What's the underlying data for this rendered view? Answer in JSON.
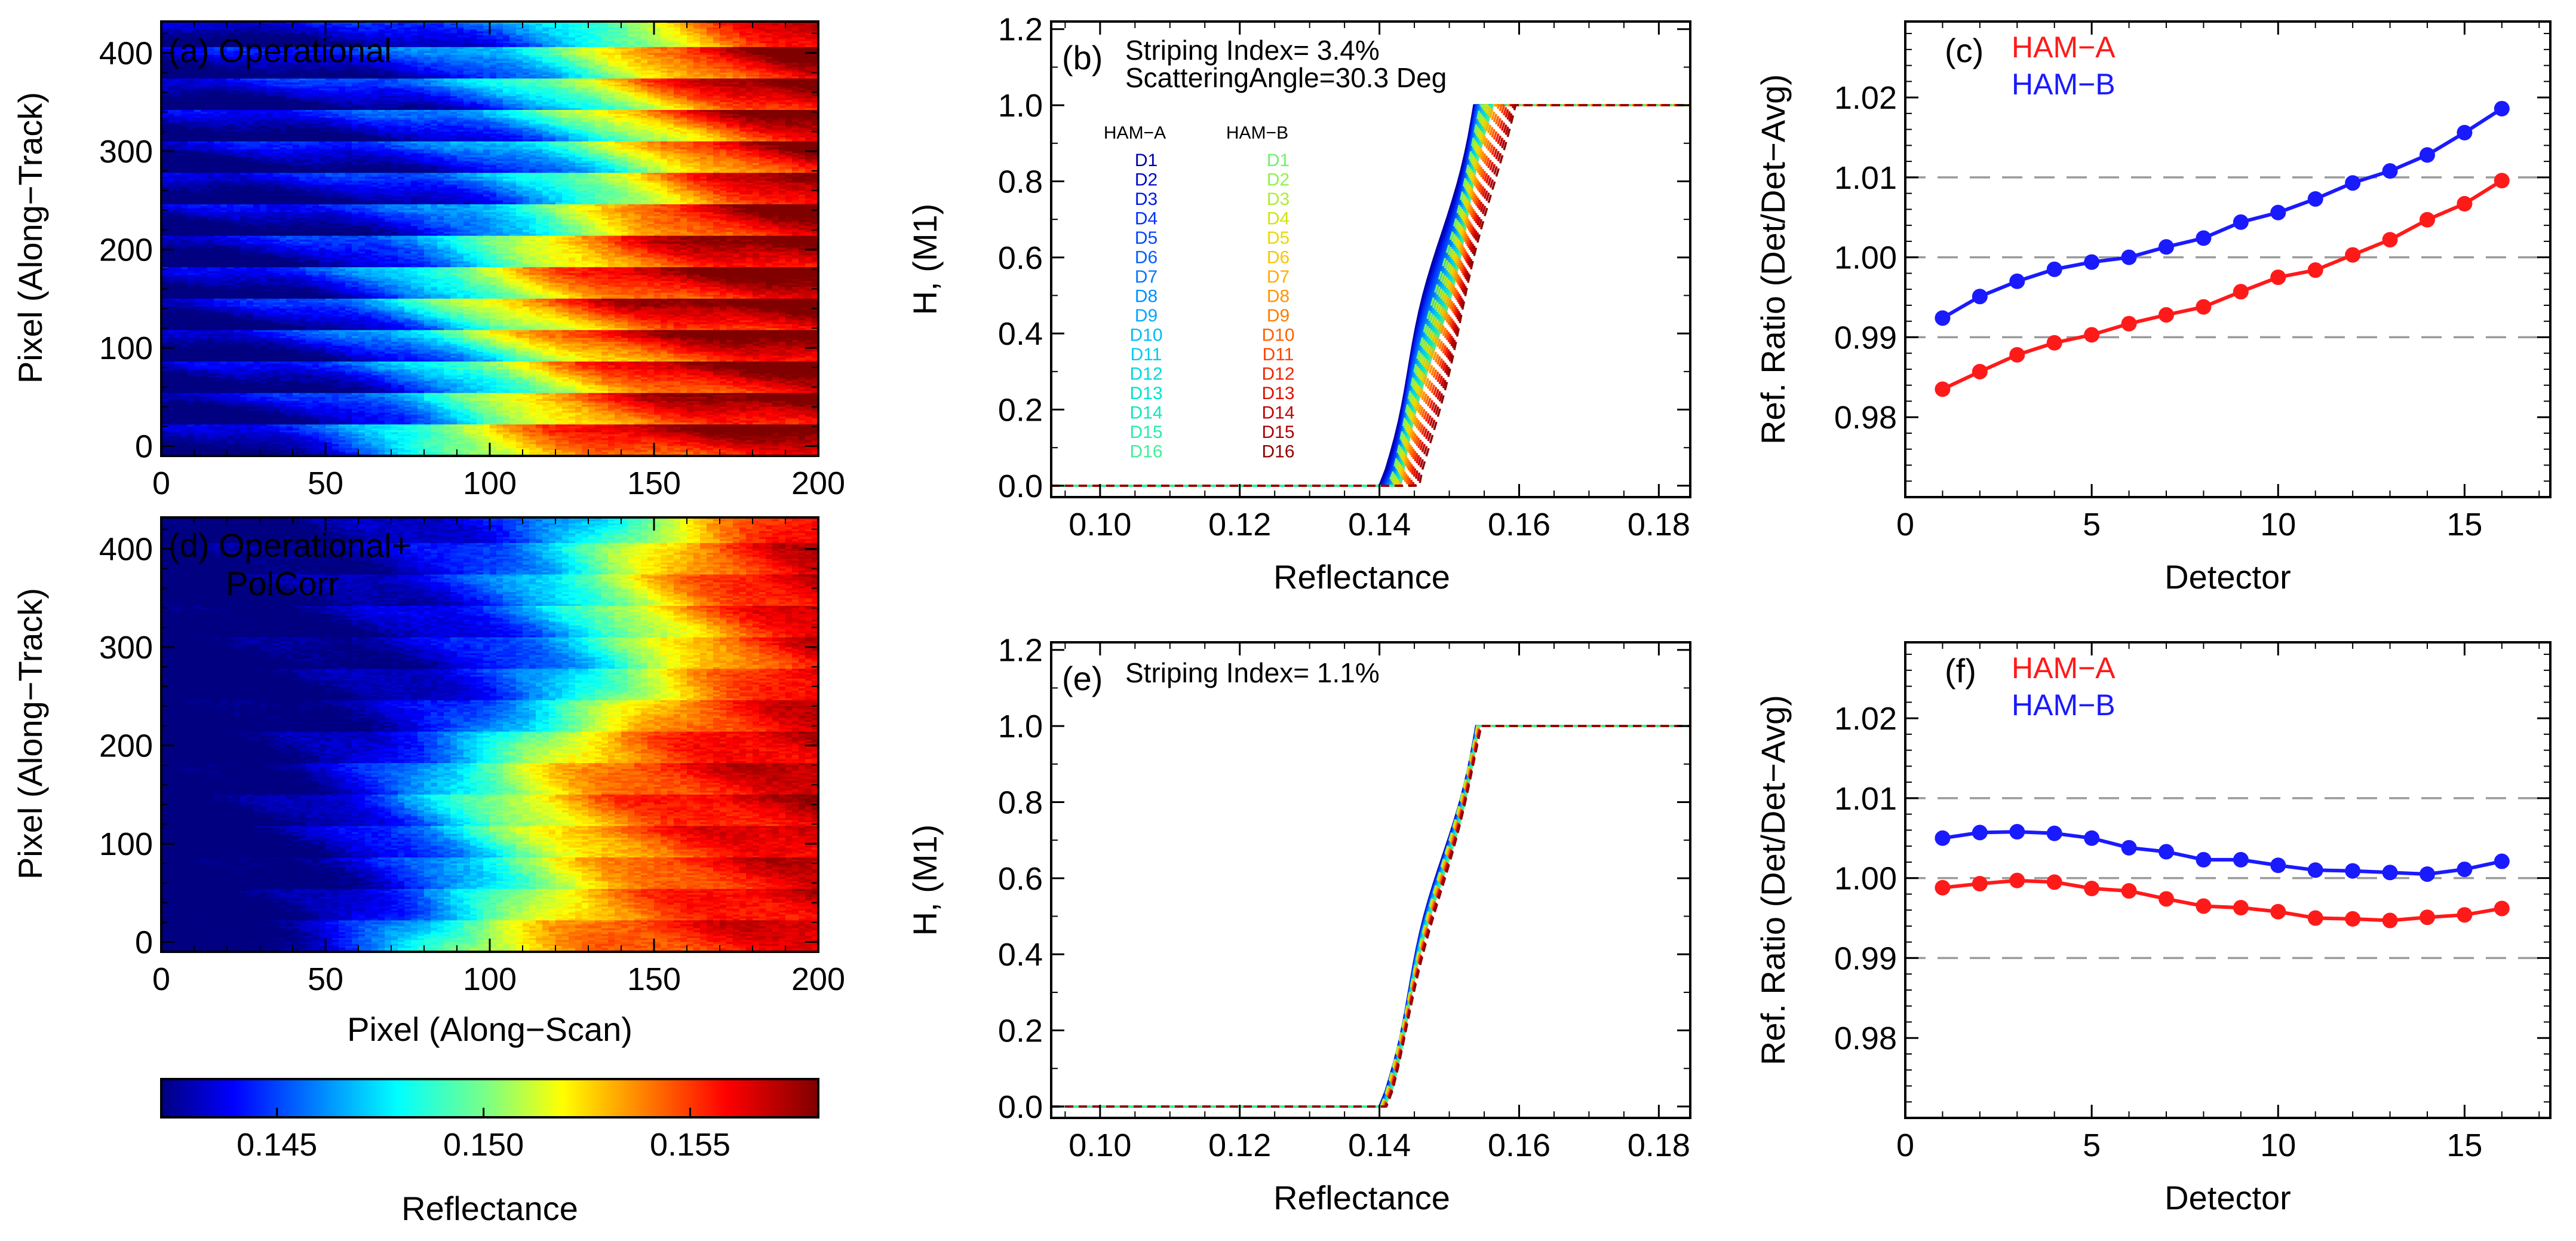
{
  "colors": {
    "ham_a": "#ff1a1a",
    "ham_b": "#1a1aff",
    "reference_line": "#9a9a9a",
    "axis": "#000000"
  },
  "colorbar": {
    "label": "Reflectance",
    "range": [
      0.1422,
      0.1581
    ],
    "ticks": [
      "0.145",
      "0.150",
      "0.155"
    ],
    "tick_values": [
      0.145,
      0.15,
      0.155
    ]
  },
  "chart_data": [
    {
      "id": "a",
      "type": "heatmap",
      "panel_label": "(a) Operational",
      "title_lines": [
        "(a) Operational"
      ],
      "xlabel": "",
      "ylabel": "Pixel (Along−Track)",
      "xlim": [
        0,
        200
      ],
      "ylim": [
        -10,
        432
      ],
      "xticks": [
        "0",
        "50",
        "100",
        "150",
        "200"
      ],
      "xtick_values": [
        0,
        50,
        100,
        150,
        200
      ],
      "yticks": [
        "0",
        "100",
        "200",
        "300",
        "400"
      ],
      "ytick_values": [
        0,
        100,
        200,
        300,
        400
      ],
      "value_range": [
        0.1422,
        0.1581
      ],
      "striping": "strong"
    },
    {
      "id": "b",
      "type": "line",
      "panel_label": "(b)",
      "annotations": [
        "Striping Index= 3.4%",
        "ScatteringAngle=30.3 Deg"
      ],
      "xlabel": "Reflectance",
      "ylabel": "H, (M1)",
      "xlim": [
        0.093,
        0.1845
      ],
      "ylim": [
        -0.03,
        1.22
      ],
      "xticks": [
        "0.10",
        "0.12",
        "0.14",
        "0.16",
        "0.18"
      ],
      "xtick_values": [
        0.1,
        0.12,
        0.14,
        0.16,
        0.18
      ],
      "yticks": [
        "0.0",
        "0.2",
        "0.4",
        "0.6",
        "0.8",
        "1.0",
        "1.2"
      ],
      "ytick_values": [
        0.0,
        0.2,
        0.4,
        0.6,
        0.8,
        1.0,
        1.2
      ],
      "legend": {
        "ham_a_title": "HAM−A",
        "ham_b_title": "HAM−B",
        "detectors": [
          "D1",
          "D2",
          "D3",
          "D4",
          "D5",
          "D6",
          "D7",
          "D8",
          "D9",
          "D10",
          "D11",
          "D12",
          "D13",
          "D14",
          "D15",
          "D16"
        ],
        "ham_a_colors": [
          "#0000a8",
          "#0008c8",
          "#0018e8",
          "#0030ff",
          "#0048ff",
          "#0060ff",
          "#0078ff",
          "#0090ff",
          "#00a8ff",
          "#00bcf4",
          "#00ccec",
          "#00d8dc",
          "#00e2cc",
          "#10e8bc",
          "#28ecaa",
          "#40ee98"
        ],
        "ham_b_colors": [
          "#70f070",
          "#90f050",
          "#b0ec30",
          "#d0e410",
          "#ecd800",
          "#fcc400",
          "#ffac00",
          "#ff9400",
          "#ff7c00",
          "#ff6000",
          "#ff4400",
          "#f02400",
          "#dc1000",
          "#c40000",
          "#ac0000",
          "#900000"
        ]
      },
      "series_note": "cumulative histogram of reflectance per detector/HAM",
      "ham_a_start_reflectance": [
        0.14,
        0.1402,
        0.1404,
        0.1406,
        0.1408,
        0.141,
        0.1412,
        0.1414,
        0.1416,
        0.1418,
        0.142,
        0.1422,
        0.1424,
        0.1426,
        0.1428,
        0.143
      ],
      "ham_b_start_reflectance": [
        0.1412,
        0.1415,
        0.1418,
        0.1421,
        0.1424,
        0.1427,
        0.143,
        0.1433,
        0.1436,
        0.1439,
        0.1442,
        0.1445,
        0.1448,
        0.1451,
        0.1454,
        0.1457
      ],
      "curve_width_reflectance": 0.0135
    },
    {
      "id": "c",
      "type": "line",
      "panel_label": "(c)",
      "xlabel": "Detector",
      "ylabel": "Ref. Ratio (Det/Det−Avg)",
      "xlim": [
        0,
        17.3
      ],
      "ylim": [
        0.97,
        1.0295
      ],
      "xticks": [
        "0",
        "5",
        "10",
        "15"
      ],
      "xtick_values": [
        0,
        5,
        10,
        15
      ],
      "yticks": [
        "0.98",
        "0.99",
        "1.00",
        "1.01",
        "1.02"
      ],
      "ytick_values": [
        0.98,
        0.99,
        1.0,
        1.01,
        1.02
      ],
      "reference_lines": [
        0.99,
        1.0,
        1.01
      ],
      "x": [
        1,
        2,
        3,
        4,
        5,
        6,
        7,
        8,
        9,
        10,
        11,
        12,
        13,
        14,
        15,
        16
      ],
      "series": [
        {
          "name": "HAM−A",
          "color": "#ff1a1a",
          "values": [
            0.9835,
            0.9857,
            0.9878,
            0.9893,
            0.9903,
            0.9917,
            0.9928,
            0.9938,
            0.9957,
            0.9975,
            0.9984,
            1.0003,
            1.0022,
            1.0047,
            1.0067,
            1.0096
          ]
        },
        {
          "name": "HAM−B",
          "color": "#1a1aff",
          "values": [
            0.9924,
            0.9951,
            0.997,
            0.9985,
            0.9994,
            1.0,
            1.0013,
            1.0024,
            1.0044,
            1.0056,
            1.0073,
            1.0093,
            1.0108,
            1.0128,
            1.0156,
            1.0186
          ]
        }
      ]
    },
    {
      "id": "d",
      "type": "heatmap",
      "panel_label": "(d) Operational+ PolCorr",
      "title_lines": [
        "(d) Operational+",
        "PolCorr"
      ],
      "xlabel": "Pixel (Along−Scan)",
      "ylabel": "Pixel (Along−Track)",
      "xlim": [
        0,
        200
      ],
      "ylim": [
        -10,
        432
      ],
      "xticks": [
        "0",
        "50",
        "100",
        "150",
        "200"
      ],
      "xtick_values": [
        0,
        50,
        100,
        150,
        200
      ],
      "yticks": [
        "0",
        "100",
        "200",
        "300",
        "400"
      ],
      "ytick_values": [
        0,
        100,
        200,
        300,
        400
      ],
      "value_range": [
        0.1422,
        0.1581
      ],
      "striping": "weak"
    },
    {
      "id": "e",
      "type": "line",
      "panel_label": "(e)",
      "annotations": [
        "Striping Index= 1.1%"
      ],
      "xlabel": "Reflectance",
      "ylabel": "H, (M1)",
      "xlim": [
        0.093,
        0.1845
      ],
      "ylim": [
        -0.03,
        1.22
      ],
      "xticks": [
        "0.10",
        "0.12",
        "0.14",
        "0.16",
        "0.18"
      ],
      "xtick_values": [
        0.1,
        0.12,
        0.14,
        0.16,
        0.18
      ],
      "yticks": [
        "0.0",
        "0.2",
        "0.4",
        "0.6",
        "0.8",
        "1.0",
        "1.2"
      ],
      "ytick_values": [
        0.0,
        0.2,
        0.4,
        0.6,
        0.8,
        1.0,
        1.2
      ],
      "series_note": "cumulative histograms nearly coincide after polarization correction",
      "ham_a_start_reflectance": [
        0.14,
        0.14,
        0.1401,
        0.1401,
        0.1402,
        0.1402,
        0.1403,
        0.1403,
        0.1404,
        0.1404,
        0.1405,
        0.1405,
        0.1406,
        0.1406,
        0.1407,
        0.1407
      ],
      "ham_b_start_reflectance": [
        0.1402,
        0.1403,
        0.1403,
        0.1404,
        0.1404,
        0.1405,
        0.1405,
        0.1406,
        0.1406,
        0.1407,
        0.1407,
        0.1408,
        0.1408,
        0.1409,
        0.1409,
        0.141
      ],
      "curve_width_reflectance": 0.0138
    },
    {
      "id": "f",
      "type": "line",
      "panel_label": "(f)",
      "xlabel": "Detector",
      "ylabel": "Ref. Ratio (Det/Det−Avg)",
      "xlim": [
        0,
        17.3
      ],
      "ylim": [
        0.97,
        1.0295
      ],
      "xticks": [
        "0",
        "5",
        "10",
        "15"
      ],
      "xtick_values": [
        0,
        5,
        10,
        15
      ],
      "yticks": [
        "0.98",
        "0.99",
        "1.00",
        "1.01",
        "1.02"
      ],
      "ytick_values": [
        0.98,
        0.99,
        1.0,
        1.01,
        1.02
      ],
      "reference_lines": [
        0.99,
        1.0,
        1.01
      ],
      "x": [
        1,
        2,
        3,
        4,
        5,
        6,
        7,
        8,
        9,
        10,
        11,
        12,
        13,
        14,
        15,
        16
      ],
      "series": [
        {
          "name": "HAM−A",
          "color": "#ff1a1a",
          "values": [
            0.9988,
            0.9993,
            0.9997,
            0.9995,
            0.9987,
            0.9984,
            0.9974,
            0.9965,
            0.9963,
            0.9958,
            0.995,
            0.9949,
            0.9947,
            0.9951,
            0.9954,
            0.9962
          ]
        },
        {
          "name": "HAM−B",
          "color": "#1a1aff",
          "values": [
            1.005,
            1.0057,
            1.0058,
            1.0056,
            1.005,
            1.0038,
            1.0033,
            1.0023,
            1.0023,
            1.0016,
            1.001,
            1.0009,
            1.0007,
            1.0005,
            1.0011,
            1.0021
          ]
        }
      ]
    }
  ]
}
